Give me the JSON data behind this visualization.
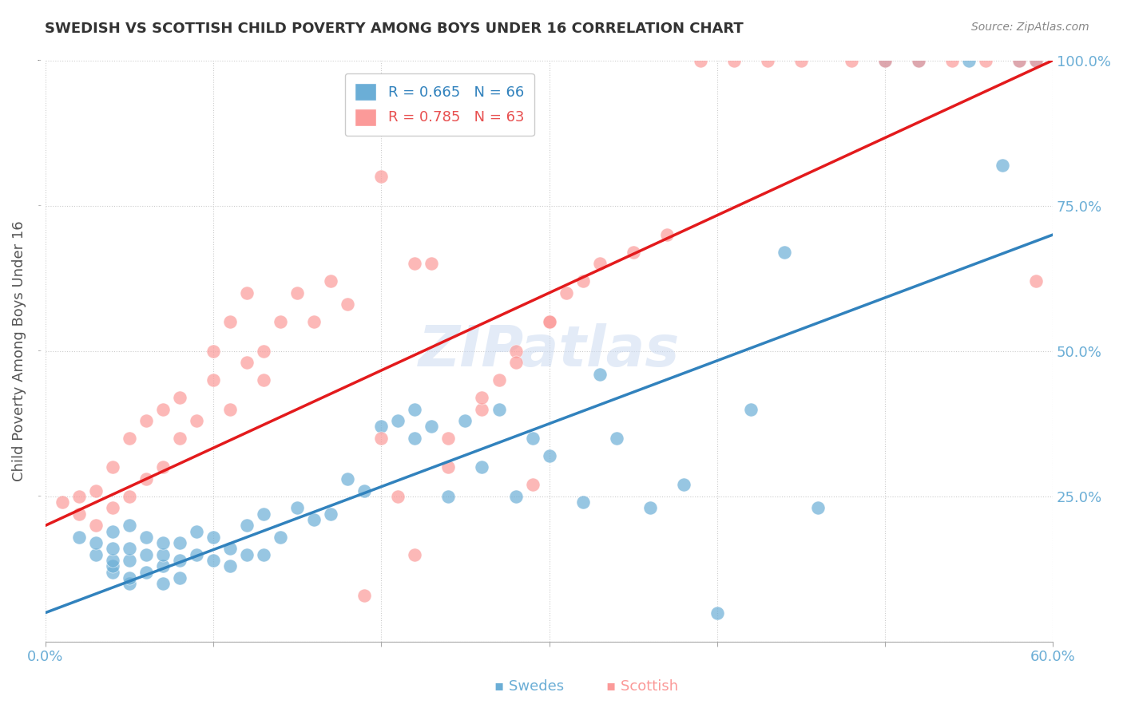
{
  "title": "SWEDISH VS SCOTTISH CHILD POVERTY AMONG BOYS UNDER 16 CORRELATION CHART",
  "source": "Source: ZipAtlas.com",
  "ylabel": "Child Poverty Among Boys Under 16",
  "xlabel": "",
  "xlim": [
    0.0,
    0.6
  ],
  "ylim": [
    0.0,
    1.0
  ],
  "xticks": [
    0.0,
    0.1,
    0.2,
    0.3,
    0.4,
    0.5,
    0.6
  ],
  "yticks": [
    0.0,
    0.25,
    0.5,
    0.75,
    1.0
  ],
  "xtick_labels": [
    "0.0%",
    "",
    "",
    "",
    "",
    "",
    "60.0%"
  ],
  "ytick_labels": [
    "",
    "25.0%",
    "50.0%",
    "75.0%",
    "100.0%"
  ],
  "blue_R": 0.665,
  "blue_N": 66,
  "pink_R": 0.785,
  "pink_N": 63,
  "blue_color": "#6baed6",
  "pink_color": "#fb9a99",
  "blue_line_color": "#3182bd",
  "pink_line_color": "#e31a1c",
  "watermark": "ZIPatlas",
  "background_color": "#ffffff",
  "grid_color": "#cccccc",
  "tick_label_color": "#6baed6",
  "title_color": "#333333",
  "legend_blue_label": "Swedes",
  "legend_pink_label": "Scottish",
  "blue_scatter_x": [
    0.02,
    0.03,
    0.03,
    0.04,
    0.04,
    0.04,
    0.04,
    0.04,
    0.05,
    0.05,
    0.05,
    0.05,
    0.05,
    0.06,
    0.06,
    0.06,
    0.07,
    0.07,
    0.07,
    0.07,
    0.08,
    0.08,
    0.08,
    0.09,
    0.09,
    0.1,
    0.1,
    0.11,
    0.11,
    0.12,
    0.12,
    0.13,
    0.13,
    0.14,
    0.15,
    0.16,
    0.17,
    0.18,
    0.19,
    0.2,
    0.21,
    0.22,
    0.22,
    0.23,
    0.24,
    0.25,
    0.26,
    0.27,
    0.28,
    0.29,
    0.3,
    0.32,
    0.33,
    0.34,
    0.36,
    0.38,
    0.4,
    0.42,
    0.44,
    0.46,
    0.5,
    0.52,
    0.55,
    0.57,
    0.58,
    0.59
  ],
  "blue_scatter_y": [
    0.18,
    0.15,
    0.17,
    0.12,
    0.13,
    0.14,
    0.16,
    0.19,
    0.1,
    0.11,
    0.14,
    0.16,
    0.2,
    0.12,
    0.15,
    0.18,
    0.1,
    0.13,
    0.15,
    0.17,
    0.11,
    0.14,
    0.17,
    0.15,
    0.19,
    0.14,
    0.18,
    0.13,
    0.16,
    0.15,
    0.2,
    0.15,
    0.22,
    0.18,
    0.23,
    0.21,
    0.22,
    0.28,
    0.26,
    0.37,
    0.38,
    0.35,
    0.4,
    0.37,
    0.25,
    0.38,
    0.3,
    0.4,
    0.25,
    0.35,
    0.32,
    0.24,
    0.46,
    0.35,
    0.23,
    0.27,
    0.05,
    0.4,
    0.67,
    0.23,
    1.0,
    1.0,
    1.0,
    0.82,
    1.0,
    1.0
  ],
  "pink_scatter_x": [
    0.01,
    0.02,
    0.02,
    0.03,
    0.03,
    0.04,
    0.04,
    0.05,
    0.05,
    0.06,
    0.06,
    0.07,
    0.07,
    0.08,
    0.08,
    0.09,
    0.1,
    0.1,
    0.11,
    0.11,
    0.12,
    0.12,
    0.13,
    0.13,
    0.14,
    0.15,
    0.16,
    0.17,
    0.18,
    0.19,
    0.2,
    0.21,
    0.22,
    0.23,
    0.24,
    0.26,
    0.27,
    0.28,
    0.29,
    0.3,
    0.31,
    0.33,
    0.35,
    0.37,
    0.39,
    0.41,
    0.43,
    0.45,
    0.48,
    0.5,
    0.52,
    0.54,
    0.56,
    0.58,
    0.59,
    0.59,
    0.2,
    0.22,
    0.24,
    0.26,
    0.28,
    0.3,
    0.32
  ],
  "pink_scatter_y": [
    0.24,
    0.22,
    0.25,
    0.2,
    0.26,
    0.23,
    0.3,
    0.25,
    0.35,
    0.28,
    0.38,
    0.3,
    0.4,
    0.35,
    0.42,
    0.38,
    0.45,
    0.5,
    0.4,
    0.55,
    0.48,
    0.6,
    0.5,
    0.45,
    0.55,
    0.6,
    0.55,
    0.62,
    0.58,
    0.08,
    0.35,
    0.25,
    0.15,
    0.65,
    0.3,
    0.4,
    0.45,
    0.5,
    0.27,
    0.55,
    0.6,
    0.65,
    0.67,
    0.7,
    1.0,
    1.0,
    1.0,
    1.0,
    1.0,
    1.0,
    1.0,
    1.0,
    1.0,
    1.0,
    1.0,
    0.62,
    0.8,
    0.65,
    0.35,
    0.42,
    0.48,
    0.55,
    0.62
  ],
  "blue_line_x": [
    0.0,
    0.6
  ],
  "blue_line_y": [
    0.05,
    0.7
  ],
  "pink_line_x": [
    0.0,
    0.6
  ],
  "pink_line_y": [
    0.2,
    1.0
  ]
}
